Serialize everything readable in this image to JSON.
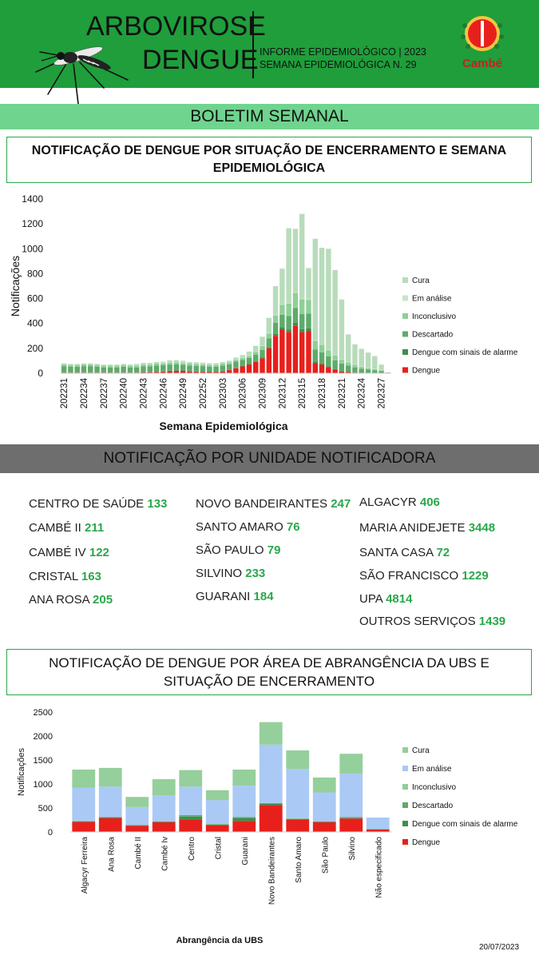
{
  "header": {
    "title_line1": "ARBOVIROSE",
    "title_line2": "DENGUE",
    "subtitle_line1": "INFORME EPIDEMIOLÓGICO | 2023",
    "subtitle_line2": "SEMANA EPIDEMIOLÓGICA  N. 29",
    "logo_text": "Cambé",
    "bg_color": "#1f9e3b"
  },
  "banner": {
    "label": "BOLETIM SEMANAL"
  },
  "section1": {
    "title": "NOTIFICAÇÃO DE DENGUE POR SITUAÇÃO DE ENCERRAMENTO E SEMANA EPIDEMIOLÓGICA"
  },
  "section2": {
    "title": "NOTIFICAÇÃO POR UNIDADE NOTIFICADORA"
  },
  "section3": {
    "title": "NOTIFICAÇÃO DE DENGUE POR ÁREA DE ABRANGÊNCIA DA UBS E SITUAÇÃO DE ENCERRAMENTO"
  },
  "units": {
    "col1": [
      {
        "name": "CENTRO  DE SAÚDE",
        "value": "133"
      },
      {
        "name": "CAMBÉ II",
        "value": "211"
      },
      {
        "name": "CAMBÉ IV",
        "value": "122"
      },
      {
        "name": "CRISTAL",
        "value": "163"
      },
      {
        "name": "ANA ROSA",
        "value": "205"
      }
    ],
    "col2": [
      {
        "name": "NOVO BANDEIRANTES",
        "value": "247"
      },
      {
        "name": "SANTO AMARO",
        "value": "76"
      },
      {
        "name": "SÃO PAULO",
        "value": "79"
      },
      {
        "name": "SILVINO",
        "value": "233"
      },
      {
        "name": "GUARANI",
        "value": "184"
      }
    ],
    "col3": [
      {
        "name": "ALGACYR",
        "value": "406"
      },
      {
        "name": "MARIA ANIDEJETE",
        "value": "3448"
      },
      {
        "name": "SANTA CASA",
        "value": "72"
      },
      {
        "name": "SÃO FRANCISCO",
        "value": "1229"
      },
      {
        "name": "UPA",
        "value": "4814"
      },
      {
        "name": "OUTROS SERVIÇOS",
        "value": "1439"
      }
    ]
  },
  "footer": {
    "date": "20/07/2023"
  },
  "chart_data": [
    {
      "type": "bar",
      "stacked": true,
      "xlabel": "Semana Epidemiológica",
      "ylabel": "Notificações",
      "ylim": [
        0,
        1400
      ],
      "yticks": [
        0,
        200,
        400,
        600,
        800,
        1000,
        1200,
        1400
      ],
      "legend_position": "right",
      "categories": [
        "202231",
        "202232",
        "202233",
        "202234",
        "202235",
        "202236",
        "202237",
        "202238",
        "202239",
        "202240",
        "202241",
        "202242",
        "202243",
        "202244",
        "202245",
        "202246",
        "202247",
        "202248",
        "202249",
        "202250",
        "202251",
        "202252",
        "202301",
        "202302",
        "202303",
        "202304",
        "202305",
        "202306",
        "202307",
        "202308",
        "202309",
        "202310",
        "202311",
        "202312",
        "202313",
        "202314",
        "202315",
        "202316",
        "202317",
        "202318",
        "202319",
        "202320",
        "202321",
        "202322",
        "202323",
        "202324",
        "202325",
        "202326",
        "202327",
        "202328"
      ],
      "tick_labels": [
        "202231",
        "202234",
        "202237",
        "202240",
        "202243",
        "202246",
        "202249",
        "202252",
        "202303",
        "202306",
        "202309",
        "202312",
        "202315",
        "202318",
        "202321",
        "202324",
        "202327"
      ],
      "series": [
        {
          "name": "Dengue",
          "color": "#e8201c",
          "values": [
            5,
            5,
            5,
            5,
            5,
            5,
            5,
            5,
            5,
            5,
            5,
            5,
            8,
            8,
            10,
            12,
            18,
            20,
            20,
            15,
            12,
            10,
            10,
            10,
            15,
            25,
            40,
            55,
            70,
            90,
            120,
            200,
            300,
            350,
            330,
            380,
            330,
            340,
            80,
            70,
            50,
            30,
            15,
            10,
            5,
            5,
            3,
            2,
            1,
            0
          ]
        },
        {
          "name": "Dengue com sinais de alarme",
          "color": "#3e8f4c",
          "values": [
            2,
            2,
            2,
            2,
            2,
            2,
            2,
            2,
            2,
            2,
            2,
            2,
            2,
            2,
            2,
            2,
            2,
            2,
            2,
            2,
            2,
            2,
            2,
            2,
            2,
            2,
            3,
            3,
            4,
            5,
            8,
            10,
            15,
            20,
            20,
            25,
            25,
            20,
            10,
            8,
            5,
            4,
            3,
            2,
            2,
            1,
            1,
            1,
            0,
            0
          ]
        },
        {
          "name": "Descartado",
          "color": "#5eab6b",
          "values": [
            50,
            45,
            45,
            50,
            50,
            45,
            40,
            40,
            40,
            45,
            40,
            40,
            45,
            45,
            50,
            50,
            50,
            50,
            45,
            45,
            45,
            45,
            40,
            40,
            45,
            45,
            50,
            50,
            50,
            55,
            60,
            70,
            90,
            100,
            110,
            120,
            120,
            120,
            100,
            90,
            80,
            70,
            60,
            50,
            40,
            30,
            25,
            20,
            15,
            5
          ]
        },
        {
          "name": "Inconclusivo",
          "color": "#90cf97",
          "values": [
            15,
            15,
            15,
            15,
            15,
            15,
            15,
            15,
            15,
            15,
            15,
            15,
            15,
            15,
            15,
            15,
            15,
            15,
            15,
            15,
            15,
            15,
            15,
            15,
            15,
            15,
            15,
            15,
            15,
            20,
            30,
            40,
            60,
            80,
            100,
            120,
            120,
            110,
            70,
            60,
            50,
            40,
            30,
            25,
            20,
            15,
            12,
            10,
            8,
            2
          ]
        },
        {
          "name": "Em análise",
          "color": "#c4e6c8",
          "values": [
            3,
            3,
            3,
            3,
            3,
            3,
            3,
            3,
            3,
            3,
            3,
            3,
            3,
            3,
            3,
            3,
            3,
            3,
            3,
            3,
            3,
            3,
            3,
            3,
            3,
            3,
            3,
            3,
            5,
            5,
            5,
            5,
            5,
            5,
            5,
            5,
            5,
            5,
            5,
            5,
            5,
            5,
            5,
            5,
            5,
            5,
            5,
            5,
            5,
            0
          ]
        },
        {
          "name": "Cura",
          "color": "#b8dcbb",
          "values": [
            5,
            5,
            5,
            5,
            5,
            5,
            5,
            5,
            5,
            5,
            5,
            10,
            10,
            10,
            10,
            10,
            15,
            15,
            15,
            10,
            10,
            10,
            10,
            10,
            10,
            10,
            15,
            20,
            30,
            45,
            70,
            120,
            230,
            285,
            600,
            510,
            680,
            250,
            815,
            775,
            810,
            680,
            480,
            220,
            160,
            140,
            120,
            100,
            40,
            0
          ]
        }
      ]
    },
    {
      "type": "bar",
      "stacked": true,
      "xlabel": "Abrangência da UBS",
      "ylabel": "Notificações",
      "ylim": [
        0,
        2500
      ],
      "yticks": [
        0,
        500,
        1000,
        1500,
        2000,
        2500
      ],
      "legend_position": "right",
      "categories": [
        "Algacyr Ferreira",
        "Ana Rosa",
        "Cambé II",
        "Cambé Iv",
        "Centro",
        "Cristal",
        "Guarani",
        "Novo Bandeirantes",
        "Santo Amaro",
        "São Paulo",
        "Silvino",
        "Não especificado"
      ],
      "series": [
        {
          "name": "Dengue",
          "color": "#e8201c",
          "values": [
            210,
            290,
            130,
            200,
            250,
            140,
            230,
            560,
            260,
            200,
            280,
            50
          ]
        },
        {
          "name": "Dengue com sinais de alarme",
          "color": "#3e8f4c",
          "values": [
            10,
            10,
            10,
            10,
            70,
            10,
            60,
            30,
            10,
            10,
            10,
            5
          ]
        },
        {
          "name": "Descartado",
          "color": "#5eab6b",
          "values": [
            10,
            10,
            5,
            10,
            30,
            10,
            20,
            10,
            10,
            10,
            20,
            5
          ]
        },
        {
          "name": "Inconclusivo",
          "color": "#90cf97",
          "values": [
            5,
            5,
            5,
            5,
            5,
            5,
            5,
            5,
            5,
            5,
            5,
            5
          ]
        },
        {
          "name": "Em análise",
          "color": "#aac9f5",
          "values": [
            690,
            630,
            370,
            540,
            590,
            500,
            650,
            1215,
            1030,
            600,
            900,
            235
          ]
        },
        {
          "name": "Cura",
          "color": "#95cf9b",
          "values": [
            375,
            390,
            210,
            335,
            345,
            205,
            335,
            470,
            385,
            310,
            415,
            0
          ]
        }
      ]
    }
  ]
}
